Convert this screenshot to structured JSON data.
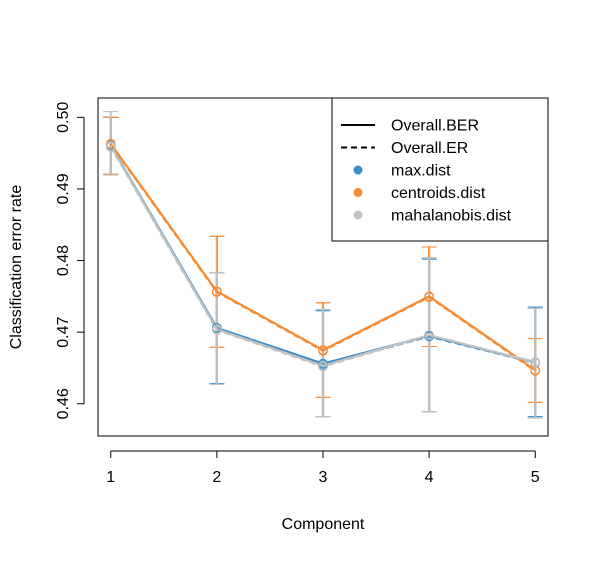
{
  "chart_data": {
    "type": "line",
    "title": "",
    "xlabel": "Component",
    "ylabel": "Classification error rate",
    "x": [
      1,
      2,
      3,
      4,
      5
    ],
    "xticks": [
      "1",
      "2",
      "3",
      "4",
      "5"
    ],
    "xlim": [
      0.88,
      5.12
    ],
    "ylim": [
      0.4555,
      0.5027
    ],
    "yticks": [
      0.46,
      0.47,
      0.48,
      0.49,
      0.5
    ],
    "ytick_labels": [
      "0.46",
      "0.47",
      "0.48",
      "0.49",
      "0.50"
    ],
    "grid": false,
    "legend_position": "top-right",
    "legend": [
      {
        "label": "Overall.BER",
        "kind": "line",
        "style": "solid",
        "color": "#000000"
      },
      {
        "label": "Overall.ER",
        "kind": "line",
        "style": "dashed",
        "color": "#000000"
      },
      {
        "label": "max.dist",
        "kind": "point",
        "color": "#388ECC"
      },
      {
        "label": "centroids.dist",
        "kind": "point",
        "color": "#F68B33"
      },
      {
        "label": "mahalanobis.dist",
        "kind": "point",
        "color": "#C2C2C2"
      }
    ],
    "series": [
      {
        "name": "max.dist",
        "metric": "Overall.BER",
        "color": "#388ECC",
        "values": [
          0.4961,
          0.4706,
          0.4656,
          0.4695,
          0.4658
        ],
        "err_low": [
          0.492,
          0.4628,
          0.4582,
          0.4589,
          0.4582
        ],
        "err_high": [
          0.5,
          0.4783,
          0.473,
          0.4802,
          0.4735
        ]
      },
      {
        "name": "max.dist",
        "metric": "Overall.ER",
        "color": "#388ECC",
        "values": [
          0.4959,
          0.4704,
          0.4654,
          0.4694,
          0.4657
        ],
        "err_low": [
          0.492,
          0.4628,
          0.4582,
          0.4589,
          0.4582
        ],
        "err_high": [
          0.5,
          0.4783,
          0.473,
          0.4802,
          0.4735
        ]
      },
      {
        "name": "centroids.dist",
        "metric": "Overall.BER",
        "color": "#F68B33",
        "values": [
          0.4963,
          0.4757,
          0.4675,
          0.475,
          0.4647
        ],
        "err_low": [
          0.492,
          0.4679,
          0.4609,
          0.468,
          0.4602
        ],
        "err_high": [
          0.5,
          0.4834,
          0.4741,
          0.4819,
          0.4691
        ]
      },
      {
        "name": "centroids.dist",
        "metric": "Overall.ER",
        "color": "#F68B33",
        "values": [
          0.4962,
          0.4756,
          0.4674,
          0.4749,
          0.4646
        ],
        "err_low": [
          0.492,
          0.4679,
          0.4609,
          0.468,
          0.4602
        ],
        "err_high": [
          0.5,
          0.4834,
          0.4741,
          0.4819,
          0.4691
        ]
      },
      {
        "name": "mahalanobis.dist",
        "metric": "Overall.BER",
        "color": "#C2C2C2",
        "values": [
          0.496,
          0.4704,
          0.4653,
          0.4696,
          0.4658
        ],
        "err_low": [
          0.4921,
          0.4627,
          0.4582,
          0.4589,
          0.458
        ],
        "err_high": [
          0.5008,
          0.4783,
          0.4732,
          0.4804,
          0.4733
        ]
      },
      {
        "name": "mahalanobis.dist",
        "metric": "Overall.ER",
        "color": "#C2C2C2",
        "values": [
          0.4959,
          0.4703,
          0.4652,
          0.4695,
          0.4657
        ],
        "err_low": [
          0.4921,
          0.4627,
          0.4582,
          0.4589,
          0.458
        ],
        "err_high": [
          0.5008,
          0.4783,
          0.4732,
          0.4804,
          0.4733
        ]
      }
    ]
  }
}
